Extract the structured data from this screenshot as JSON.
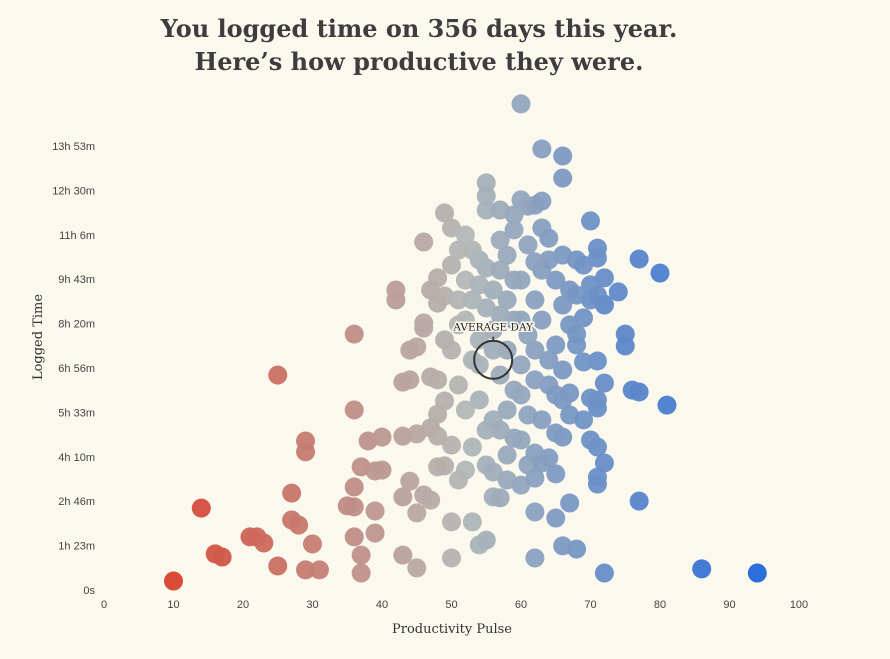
{
  "title": {
    "line1": "You logged time on 356 days this year.",
    "line2": "Here’s how productive they were."
  },
  "chart_data": {
    "type": "scatter",
    "xlabel": "Productivity Pulse",
    "ylabel": "Logged Time",
    "xlim": [
      0,
      100
    ],
    "ylim_hours": [
      0,
      13.883
    ],
    "x_ticks": [
      "0",
      "10",
      "20",
      "30",
      "40",
      "50",
      "60",
      "70",
      "80",
      "90",
      "100"
    ],
    "y_ticks": [
      "0s",
      "1h 23m",
      "2h 46m",
      "4h 10m",
      "5h 33m",
      "6h 56m",
      "8h 20m",
      "9h 43m",
      "11h 6m",
      "12h 30m",
      "13h 53m"
    ],
    "average_day": {
      "label": "AVERAGE DAY",
      "x": 56,
      "y_hours": 7.2
    },
    "color_scale": {
      "low": "#d9402c",
      "mid": "#b3b8b6",
      "high": "#2166d8"
    },
    "points_x_pulse_y_hours": [
      [
        10,
        0.28
      ],
      [
        14,
        2.56
      ],
      [
        16,
        1.13
      ],
      [
        17,
        1.03
      ],
      [
        21,
        1.66
      ],
      [
        22,
        1.66
      ],
      [
        23,
        1.47
      ],
      [
        25,
        0.75
      ],
      [
        25,
        6.72
      ],
      [
        27,
        3.03
      ],
      [
        27,
        2.19
      ],
      [
        28,
        2.03
      ],
      [
        29,
        4.66
      ],
      [
        29,
        4.32
      ],
      [
        29,
        0.63
      ],
      [
        30,
        1.44
      ],
      [
        31,
        0.63
      ],
      [
        36,
        8.0
      ],
      [
        36,
        5.63
      ],
      [
        36,
        3.22
      ],
      [
        35,
        2.63
      ],
      [
        36,
        2.6
      ],
      [
        36,
        1.66
      ],
      [
        37,
        3.85
      ],
      [
        37,
        1.09
      ],
      [
        37,
        0.53
      ],
      [
        38,
        4.66
      ],
      [
        39,
        3.72
      ],
      [
        39,
        2.47
      ],
      [
        39,
        1.78
      ],
      [
        40,
        4.78
      ],
      [
        40,
        3.75
      ],
      [
        43,
        2.91
      ],
      [
        43,
        4.81
      ],
      [
        44,
        3.4
      ],
      [
        43,
        1.09
      ],
      [
        45,
        2.41
      ],
      [
        45,
        4.88
      ],
      [
        45,
        0.69
      ],
      [
        42,
        9.38
      ],
      [
        42,
        9.07
      ],
      [
        44,
        7.5
      ],
      [
        43,
        6.5
      ],
      [
        44,
        6.57
      ],
      [
        46,
        10.88
      ],
      [
        46,
        8.19
      ],
      [
        47,
        6.66
      ],
      [
        47,
        5.07
      ],
      [
        48,
        6.57
      ],
      [
        48,
        5.5
      ],
      [
        49,
        5.91
      ],
      [
        49,
        3.88
      ],
      [
        46,
        2.97
      ],
      [
        47,
        2.81
      ],
      [
        50,
        4.53
      ],
      [
        50,
        2.13
      ],
      [
        50,
        1.0
      ],
      [
        48,
        4.81
      ],
      [
        48,
        3.85
      ],
      [
        48,
        8.97
      ],
      [
        47,
        9.38
      ],
      [
        48,
        9.76
      ],
      [
        49,
        9.19
      ],
      [
        46,
        8.35
      ],
      [
        45,
        7.6
      ],
      [
        49,
        11.79
      ],
      [
        50,
        11.32
      ],
      [
        53,
        4.47
      ],
      [
        53,
        2.13
      ],
      [
        54,
        1.41
      ],
      [
        55,
        1.56
      ],
      [
        56,
        2.91
      ],
      [
        57,
        2.88
      ],
      [
        55,
        12.73
      ],
      [
        55,
        12.32
      ],
      [
        60,
        15.2
      ],
      [
        63,
        13.79
      ],
      [
        66,
        13.57
      ],
      [
        66,
        12.88
      ],
      [
        61,
        12.0
      ],
      [
        62,
        12.03
      ],
      [
        63,
        12.16
      ],
      [
        70,
        11.54
      ],
      [
        71,
        10.69
      ],
      [
        71,
        10.38
      ],
      [
        77,
        10.35
      ],
      [
        80,
        9.91
      ],
      [
        72,
        9.76
      ],
      [
        72,
        8.94
      ],
      [
        74,
        9.32
      ],
      [
        75,
        8.0
      ],
      [
        75,
        7.63
      ],
      [
        77,
        6.19
      ],
      [
        76,
        6.25
      ],
      [
        81,
        5.78
      ],
      [
        77,
        2.78
      ],
      [
        86,
        0.66
      ],
      [
        94,
        0.53
      ],
      [
        72,
        0.53
      ],
      [
        68,
        1.28
      ],
      [
        66,
        1.38
      ],
      [
        62,
        1.0
      ],
      [
        65,
        2.25
      ],
      [
        67,
        2.72
      ],
      [
        62,
        2.44
      ],
      [
        71,
        3.31
      ],
      [
        71,
        3.53
      ],
      [
        71,
        4.47
      ],
      [
        72,
        3.97
      ],
      [
        70,
        4.69
      ],
      [
        66,
        4.78
      ],
      [
        65,
        3.63
      ],
      [
        61,
        3.91
      ],
      [
        64,
        4.13
      ],
      [
        59,
        4.75
      ],
      [
        71,
        5.94
      ],
      [
        71,
        5.69
      ],
      [
        72,
        6.47
      ],
      [
        71,
        7.16
      ],
      [
        69,
        7.13
      ],
      [
        68,
        7.66
      ],
      [
        69,
        8.51
      ],
      [
        67,
        8.29
      ],
      [
        68,
        8.0
      ],
      [
        64,
        6.41
      ],
      [
        65,
        6.1
      ],
      [
        67,
        6.16
      ],
      [
        66,
        5.94
      ],
      [
        64,
        7.19
      ],
      [
        62,
        7.5
      ],
      [
        60,
        8.44
      ],
      [
        58,
        9.07
      ],
      [
        56,
        9.38
      ],
      [
        55,
        10.07
      ],
      [
        54,
        10.32
      ],
      [
        53,
        10.63
      ],
      [
        57,
        10.94
      ],
      [
        59,
        11.26
      ],
      [
        61,
        10.79
      ],
      [
        63,
        11.32
      ],
      [
        64,
        11.0
      ],
      [
        66,
        10.47
      ],
      [
        68,
        10.32
      ],
      [
        69,
        10.16
      ],
      [
        70,
        9.54
      ],
      [
        67,
        9.38
      ],
      [
        65,
        9.69
      ],
      [
        63,
        10.0
      ],
      [
        62,
        9.07
      ],
      [
        60,
        9.69
      ],
      [
        57,
        10.0
      ],
      [
        52,
        9.69
      ],
      [
        51,
        9.07
      ],
      [
        52,
        8.44
      ],
      [
        54,
        7.82
      ],
      [
        56,
        8.13
      ],
      [
        58,
        7.5
      ],
      [
        60,
        7.04
      ],
      [
        62,
        6.57
      ],
      [
        60,
        6.1
      ],
      [
        58,
        5.63
      ],
      [
        56,
        5.32
      ],
      [
        54,
        5.94
      ],
      [
        52,
        5.63
      ],
      [
        51,
        6.41
      ],
      [
        53,
        7.19
      ],
      [
        57,
        6.72
      ],
      [
        59,
        6.25
      ],
      [
        61,
        5.47
      ],
      [
        63,
        5.32
      ],
      [
        57,
        5.0
      ],
      [
        55,
        5.0
      ],
      [
        60,
        4.69
      ],
      [
        62,
        4.28
      ],
      [
        58,
        4.22
      ],
      [
        55,
        3.91
      ],
      [
        52,
        3.75
      ],
      [
        51,
        3.44
      ],
      [
        56,
        3.69
      ],
      [
        58,
        3.44
      ],
      [
        60,
        3.28
      ],
      [
        62,
        3.5
      ],
      [
        63,
        3.97
      ],
      [
        65,
        4.91
      ],
      [
        67,
        5.47
      ],
      [
        69,
        5.32
      ],
      [
        70,
        6.0
      ],
      [
        66,
        6.88
      ],
      [
        65,
        7.66
      ],
      [
        63,
        8.44
      ],
      [
        61,
        7.97
      ],
      [
        59,
        8.44
      ],
      [
        57,
        8.6
      ],
      [
        55,
        8.82
      ],
      [
        53,
        9.07
      ],
      [
        50,
        10.16
      ],
      [
        51,
        10.63
      ],
      [
        52,
        11.1
      ],
      [
        55,
        11.88
      ],
      [
        57,
        11.88
      ],
      [
        59,
        11.73
      ],
      [
        60,
        12.2
      ],
      [
        64,
        10.32
      ],
      [
        66,
        8.91
      ],
      [
        68,
        9.22
      ],
      [
        70,
        9.07
      ],
      [
        71,
        9.22
      ],
      [
        72,
        8.91
      ],
      [
        58,
        10.47
      ],
      [
        62,
        10.26
      ],
      [
        59,
        9.69
      ],
      [
        54,
        9.54
      ],
      [
        56,
        7.5
      ],
      [
        54,
        7.04
      ],
      [
        50,
        7.5
      ],
      [
        51,
        8.29
      ],
      [
        49,
        7.82
      ]
    ]
  }
}
